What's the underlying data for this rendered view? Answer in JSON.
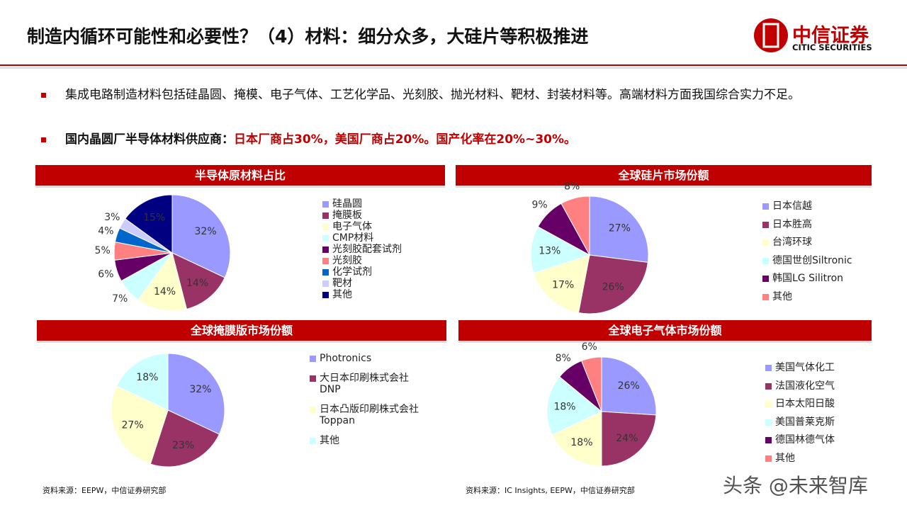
{
  "header": {
    "title": "制造内循环可能性和必要性？（4）材料：细分众多，大硅片等积极推进",
    "logo_cn": "中信证券",
    "logo_en": "CITIC SECURITIES"
  },
  "bullets": [
    {
      "text": "集成电路制造材料包括硅晶圆、掩模、电子气体、工艺化学品、光刻胶、抛光材料、靶材、封装材料等。高端材料方面我国综合实力不足。"
    },
    {
      "lead": "国内晶圆厂半导体材料供应商：",
      "highlight": "日本厂商占30%，美国厂商占20%。国产化率在20%~30%。"
    }
  ],
  "chart_data": [
    {
      "type": "pie",
      "title": "半导体原材料占比",
      "categories": [
        "硅晶圆",
        "掩膜板",
        "电子气体",
        "CMP材料",
        "光刻胶配套试剂",
        "光刻胶",
        "化学试剂",
        "靶材",
        "其他"
      ],
      "values": [
        32,
        14,
        14,
        7,
        6,
        5,
        4,
        3,
        15
      ],
      "value_labels": [
        "32%",
        "14%",
        "14%",
        "7%",
        "6%",
        "5%",
        "4%",
        "3%",
        "15%"
      ],
      "colors": [
        "#9999ff",
        "#993366",
        "#ffffcc",
        "#ccffff",
        "#660066",
        "#ff8080",
        "#0066cc",
        "#ccccff",
        "#000080"
      ]
    },
    {
      "type": "pie",
      "title": "全球硅片市场份额",
      "categories": [
        "日本信越",
        "日本胜高",
        "台湾环球",
        "德国世创Siltronic",
        "韩国LG Silitron",
        "其他"
      ],
      "values": [
        27,
        26,
        17,
        13,
        9,
        8
      ],
      "value_labels": [
        "27%",
        "26%",
        "17%",
        "13%",
        "9%",
        "8%"
      ],
      "colors": [
        "#9999ff",
        "#993366",
        "#ffffcc",
        "#ccffff",
        "#660066",
        "#ff8080"
      ]
    },
    {
      "type": "pie",
      "title": "全球掩膜版市场份额",
      "categories": [
        "Photronics",
        "大日本印刷株式会社\nDNP",
        "日本凸版印刷株式会社\nToppan",
        "其他"
      ],
      "values": [
        32,
        23,
        27,
        18
      ],
      "value_labels": [
        "32%",
        "23%",
        "27%",
        "18%"
      ],
      "colors": [
        "#9999ff",
        "#993366",
        "#ffffcc",
        "#ccffff"
      ]
    },
    {
      "type": "pie",
      "title": "全球电子气体市场份额",
      "categories": [
        "美国气体化工",
        "法国液化空气",
        "日本太阳日酸",
        "美国普莱克斯",
        "德国林德气体",
        "其他"
      ],
      "values": [
        26,
        24,
        18,
        18,
        8,
        6
      ],
      "value_labels": [
        "26%",
        "24%",
        "18%",
        "18%",
        "8%",
        "6%"
      ],
      "colors": [
        "#9999ff",
        "#993366",
        "#ffffcc",
        "#ccffff",
        "#660066",
        "#ff8080"
      ]
    }
  ],
  "sources": [
    "资料来源：EEPW，中信证券研究部",
    "资料来源：IC Insights, EEPW，中信证券研究部"
  ],
  "watermark": "头条 @未来智库"
}
